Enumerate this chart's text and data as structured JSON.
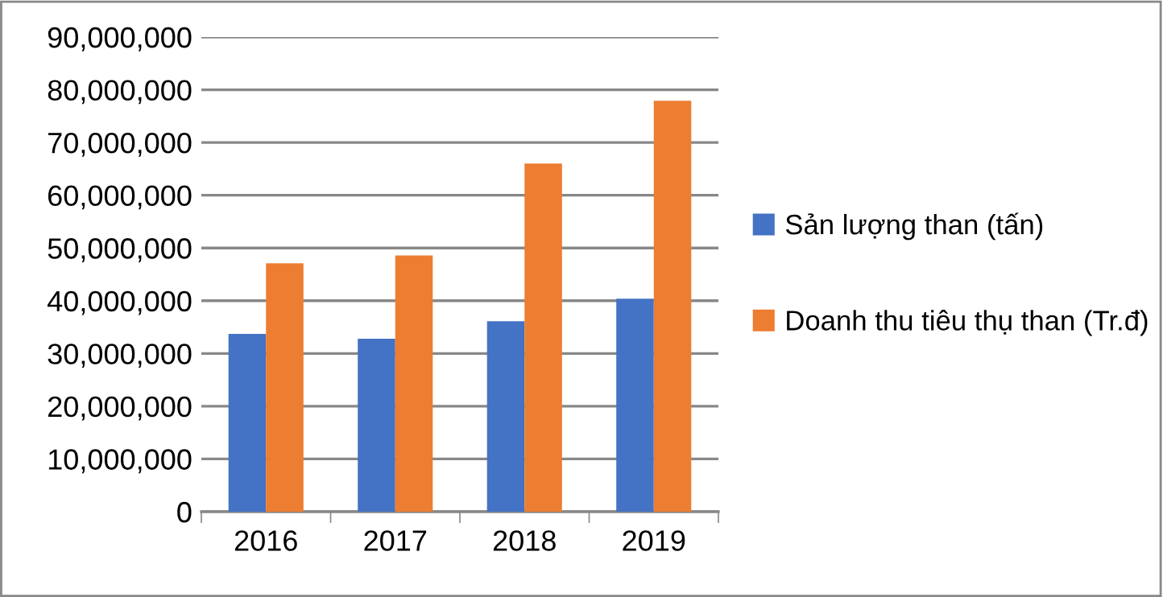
{
  "chart_data": {
    "type": "bar",
    "categories": [
      "2016",
      "2017",
      "2018",
      "2019"
    ],
    "series": [
      {
        "name": "Sản lượng than (tấn)",
        "color": "#4472c4",
        "values": [
          33700000,
          32800000,
          36100000,
          40400000
        ]
      },
      {
        "name": "Doanh thu tiêu thụ than (Tr.đ)",
        "color": "#ed7d31",
        "values": [
          47100000,
          48600000,
          66000000,
          77900000
        ]
      }
    ],
    "ylim": [
      0,
      90000000
    ],
    "yticks": [
      {
        "value": 0,
        "label": "0"
      },
      {
        "value": 10000000,
        "label": "10,000,000"
      },
      {
        "value": 20000000,
        "label": "20,000,000"
      },
      {
        "value": 30000000,
        "label": "30,000,000"
      },
      {
        "value": 40000000,
        "label": "40,000,000"
      },
      {
        "value": 50000000,
        "label": "50,000,000"
      },
      {
        "value": 60000000,
        "label": "60,000,000"
      },
      {
        "value": 70000000,
        "label": "70,000,000"
      },
      {
        "value": 80000000,
        "label": "80,000,000"
      },
      {
        "value": 90000000,
        "label": "90,000,000"
      }
    ],
    "grid": "y",
    "legend": "right"
  }
}
